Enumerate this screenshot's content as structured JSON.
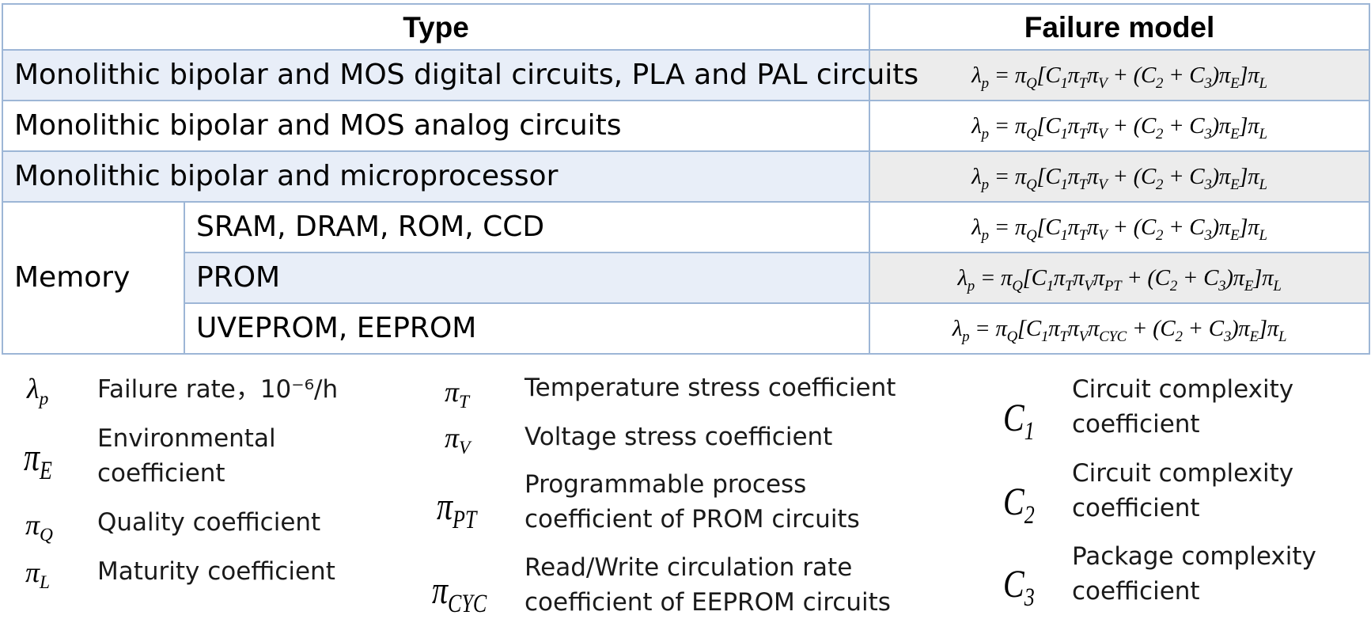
{
  "table": {
    "header": {
      "type": "Type",
      "model": "Failure model"
    },
    "rows": [
      {
        "type": "Monolithic bipolar and MOS digital circuits, PLA and PAL circuits"
      },
      {
        "type": "Monolithic bipolar and MOS analog circuits"
      },
      {
        "type": "Monolithic bipolar and microprocessor"
      },
      {
        "group": "Memory",
        "sub": "SRAM, DRAM, ROM, CCD"
      },
      {
        "sub": "PROM"
      },
      {
        "sub": "UVEPROM, EEPROM"
      }
    ]
  },
  "legend": {
    "lambda_p": "Failure rate，10⁻⁶/h",
    "pi_E": "Environmental coefficient",
    "pi_Q": "Quality coefficient",
    "pi_L": "Maturity coefficient",
    "pi_T": "Temperature stress coefficient",
    "pi_V": "Voltage stress coefficient",
    "pi_PT": "Programmable process coefficient of PROM circuits",
    "pi_CYC": "Read/Write circulation rate coefficient of EEPROM circuits",
    "C1": "Circuit complexity coefficient",
    "C2": "Circuit complexity coefficient",
    "C3": "Package complexity coefficient"
  },
  "colors": {
    "border": "#9db6d6",
    "row_shade": "#e8eef8",
    "model_shade": "#ececec"
  }
}
